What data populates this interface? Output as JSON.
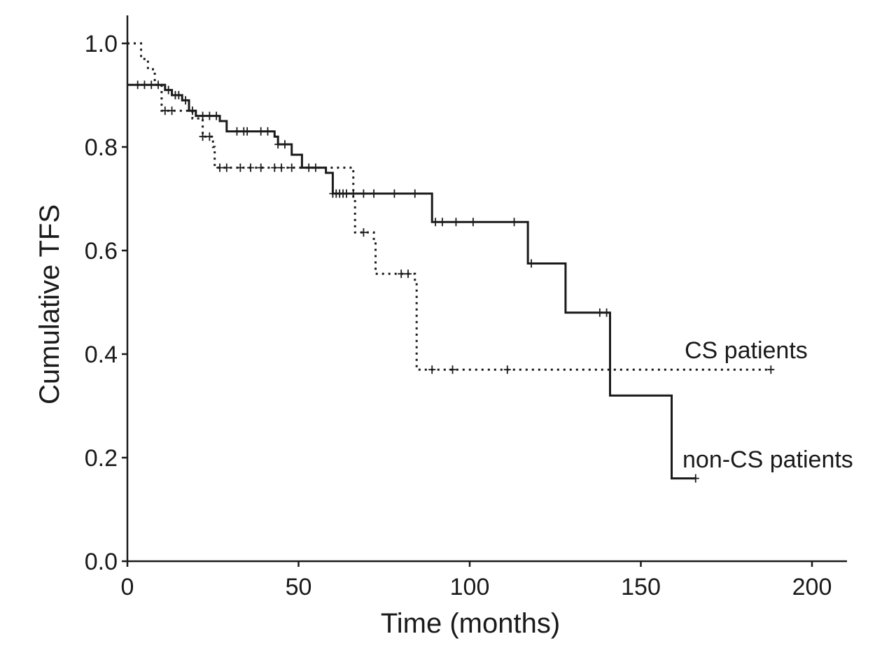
{
  "chart_data": {
    "type": "line",
    "subtype": "kaplan-meier",
    "title": "",
    "xlabel": "Time (months)",
    "ylabel": "Cumulative TFS",
    "xlim": [
      0,
      210
    ],
    "ylim": [
      0,
      1.0
    ],
    "x_ticks": [
      0,
      50,
      100,
      150,
      200
    ],
    "x_tick_labels": [
      "0",
      "50",
      "100",
      "150",
      "200"
    ],
    "y_ticks": [
      0,
      0.2,
      0.4,
      0.6,
      0.8,
      1.0
    ],
    "y_tick_labels": [
      "0.0",
      "0.2",
      "0.4",
      "0.6",
      "0.8",
      "1.0"
    ],
    "series": [
      {
        "name": "non-CS patients",
        "label": "non-CS patients",
        "style": "solid",
        "steps": [
          [
            0,
            0.92
          ],
          [
            11,
            0.91
          ],
          [
            13,
            0.9
          ],
          [
            16,
            0.89
          ],
          [
            18,
            0.87
          ],
          [
            20,
            0.86
          ],
          [
            27,
            0.85
          ],
          [
            29,
            0.83
          ],
          [
            43,
            0.82
          ],
          [
            44,
            0.805
          ],
          [
            48,
            0.785
          ],
          [
            51,
            0.76
          ],
          [
            58,
            0.75
          ],
          [
            60,
            0.71
          ],
          [
            89,
            0.655
          ],
          [
            117,
            0.575
          ],
          [
            128,
            0.48
          ],
          [
            141,
            0.32
          ],
          [
            159,
            0.16
          ],
          [
            166,
            0.16
          ]
        ],
        "censored": [
          [
            3,
            0.92
          ],
          [
            5,
            0.92
          ],
          [
            7,
            0.92
          ],
          [
            9,
            0.92
          ],
          [
            12,
            0.91
          ],
          [
            14,
            0.9
          ],
          [
            15,
            0.9
          ],
          [
            17,
            0.89
          ],
          [
            19,
            0.87
          ],
          [
            22,
            0.86
          ],
          [
            24,
            0.86
          ],
          [
            26,
            0.86
          ],
          [
            32,
            0.83
          ],
          [
            34,
            0.83
          ],
          [
            35,
            0.83
          ],
          [
            39,
            0.83
          ],
          [
            41,
            0.83
          ],
          [
            44,
            0.805
          ],
          [
            46,
            0.805
          ],
          [
            53,
            0.76
          ],
          [
            55,
            0.76
          ],
          [
            60,
            0.71
          ],
          [
            61,
            0.71
          ],
          [
            62,
            0.71
          ],
          [
            63,
            0.71
          ],
          [
            64,
            0.71
          ],
          [
            66,
            0.71
          ],
          [
            69,
            0.71
          ],
          [
            72,
            0.71
          ],
          [
            78,
            0.71
          ],
          [
            84,
            0.71
          ],
          [
            90,
            0.655
          ],
          [
            92,
            0.655
          ],
          [
            96,
            0.655
          ],
          [
            101,
            0.655
          ],
          [
            113,
            0.655
          ],
          [
            118,
            0.575
          ],
          [
            138,
            0.48
          ],
          [
            140,
            0.48
          ],
          [
            166,
            0.16
          ]
        ]
      },
      {
        "name": "CS patients",
        "label": "CS patients",
        "style": "dotted",
        "steps": [
          [
            0,
            1.0
          ],
          [
            4,
            0.97
          ],
          [
            6,
            0.95
          ],
          [
            8,
            0.92
          ],
          [
            10,
            0.87
          ],
          [
            19,
            0.855
          ],
          [
            22,
            0.82
          ],
          [
            25,
            0.8
          ],
          [
            25.5,
            0.76
          ],
          [
            60,
            0.76
          ],
          [
            66,
            0.7
          ],
          [
            66.5,
            0.635
          ],
          [
            72,
            0.62
          ],
          [
            72.5,
            0.555
          ],
          [
            84,
            0.54
          ],
          [
            84.5,
            0.37
          ],
          [
            188,
            0.37
          ]
        ],
        "censored": [
          [
            11,
            0.87
          ],
          [
            13,
            0.87
          ],
          [
            22,
            0.82
          ],
          [
            24,
            0.82
          ],
          [
            27,
            0.76
          ],
          [
            29,
            0.76
          ],
          [
            33,
            0.76
          ],
          [
            36,
            0.76
          ],
          [
            39,
            0.76
          ],
          [
            43,
            0.76
          ],
          [
            45,
            0.76
          ],
          [
            48,
            0.76
          ],
          [
            69,
            0.635
          ],
          [
            80,
            0.555
          ],
          [
            82,
            0.555
          ],
          [
            89,
            0.37
          ],
          [
            95,
            0.37
          ],
          [
            111,
            0.37
          ],
          [
            188,
            0.37
          ]
        ]
      }
    ]
  }
}
